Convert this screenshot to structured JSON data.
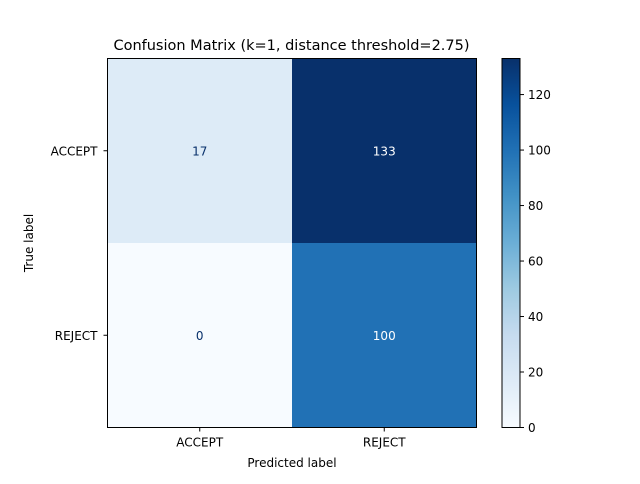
{
  "chart_data": {
    "type": "heatmap",
    "title": "Confusion Matrix (k=1, distance threshold=2.75)",
    "xlabel": "Predicted label",
    "ylabel": "True label",
    "x_categories": [
      "ACCEPT",
      "REJECT"
    ],
    "y_categories": [
      "ACCEPT",
      "REJECT"
    ],
    "values": [
      [
        17,
        133
      ],
      [
        0,
        100
      ]
    ],
    "colormap": "Blues",
    "colorbar": {
      "range": [
        0,
        133
      ],
      "ticks": [
        0,
        20,
        40,
        60,
        80,
        100,
        120
      ]
    },
    "text_colors": {
      "dark": "#08306b",
      "light": "#ffffff"
    },
    "grid": false
  }
}
